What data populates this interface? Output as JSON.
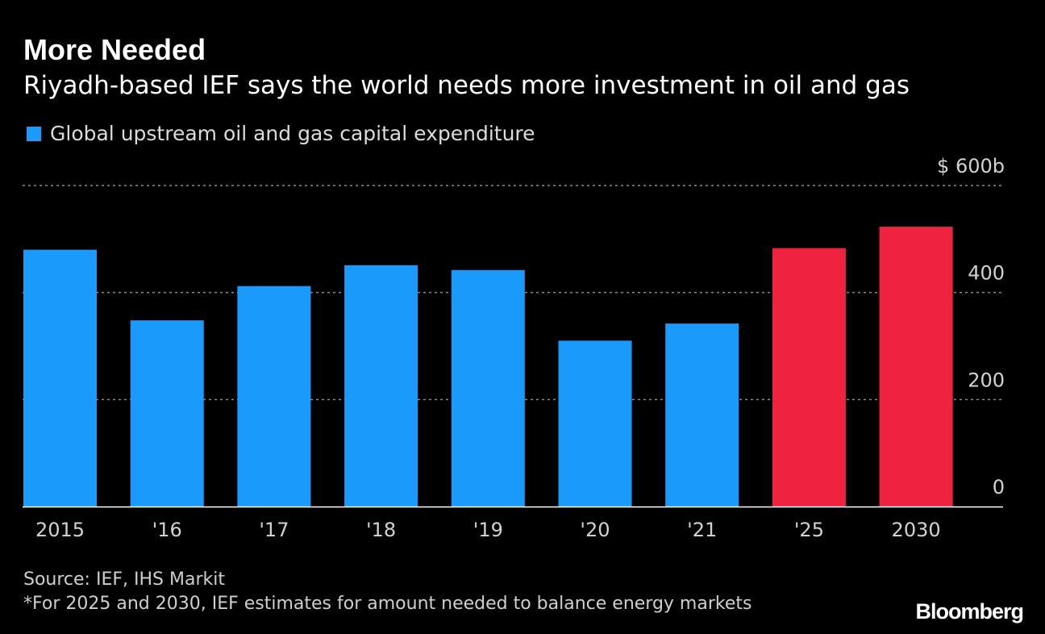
{
  "header": {
    "title": "More Needed",
    "subtitle": "Riyadh-based IEF says the world needs more investment in oil and gas"
  },
  "legend": {
    "label": "Global upstream oil and gas capital expenditure",
    "color": "#1a9bfc"
  },
  "chart_data": {
    "type": "bar",
    "categories": [
      "2015",
      "'16",
      "'17",
      "'18",
      "'19",
      "'20",
      "'21",
      "'25",
      "2030"
    ],
    "series": [
      {
        "name": "Global upstream oil and gas capital expenditure",
        "values": [
          480,
          348,
          412,
          451,
          442,
          310,
          342,
          483,
          523
        ]
      }
    ],
    "estimate_categories": [
      "'25",
      "2030"
    ],
    "colors": {
      "actual": "#1a9bfc",
      "estimate": "#ef2340"
    },
    "yticks": [
      {
        "value": 0,
        "label": "0"
      },
      {
        "value": 200,
        "label": "200"
      },
      {
        "value": 400,
        "label": "400"
      },
      {
        "value": 600,
        "label": "$ 600b"
      }
    ],
    "ylim": [
      0,
      600
    ],
    "grid": true,
    "legend_position": "top-left"
  },
  "footer": {
    "source": "Source: IEF, IHS Markit",
    "footnote": "*For 2025 and 2030, IEF estimates for amount needed to balance energy markets",
    "brand": "Bloomberg"
  }
}
